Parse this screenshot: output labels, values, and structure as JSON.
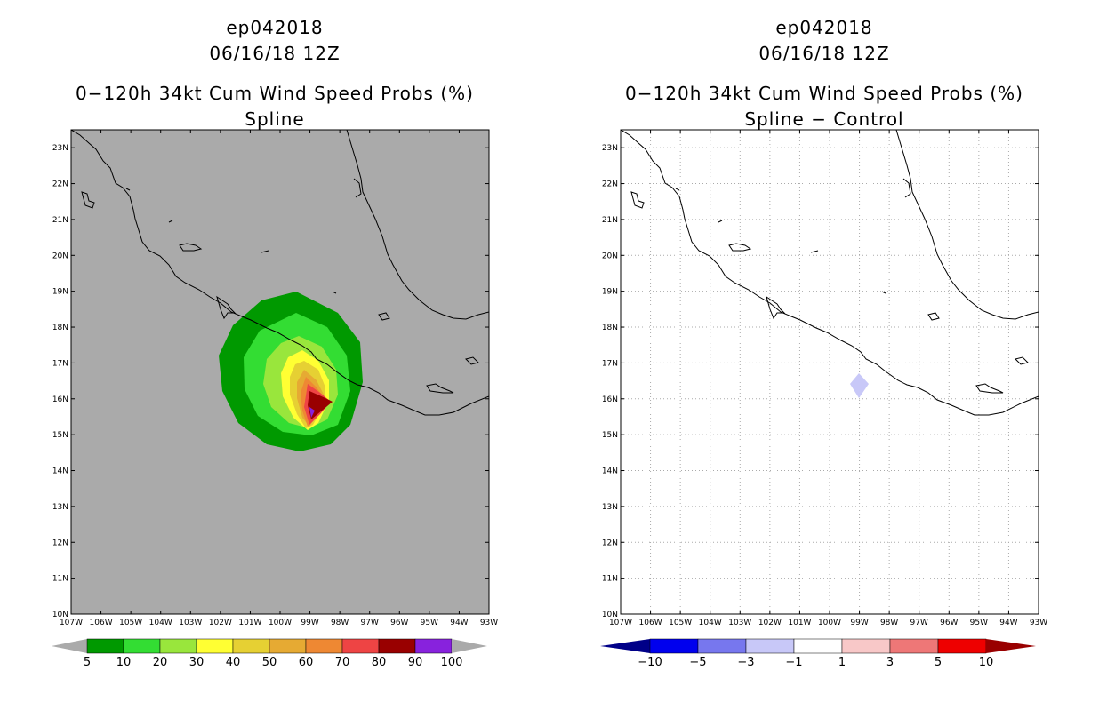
{
  "left": {
    "storm_id": "ep042018",
    "datetime": "06/16/18 12Z",
    "product": "0−120h 34kt Cum Wind Speed Probs (%)",
    "subtitle": "Spline",
    "colorbar_labels": [
      "5",
      "10",
      "20",
      "30",
      "40",
      "50",
      "60",
      "70",
      "80",
      "90",
      "100"
    ],
    "colorbar_colors": [
      "#009900",
      "#33dd33",
      "#99e63c",
      "#ffff33",
      "#e6d033",
      "#e6aa33",
      "#ee8833",
      "#ee4444",
      "#990000",
      "#8822dd"
    ],
    "colorbar_end_color": "#aaaaaa",
    "background_color": "#aaaaaa"
  },
  "right": {
    "storm_id": "ep042018",
    "datetime": "06/16/18 12Z",
    "product": "0−120h 34kt Cum Wind Speed Probs (%)",
    "subtitle": "Spline − Control",
    "colorbar_labels": [
      "−10",
      "−5",
      "−3",
      "−1",
      "1",
      "3",
      "5",
      "10"
    ],
    "colorbar_colors": [
      "#0000aa",
      "#0000ee",
      "#7777ee",
      "#c8c8f8",
      "#ffffff",
      "#f8c8c8",
      "#ee7777",
      "#ee0000",
      "#990000"
    ],
    "colorbar_start_color": "#000088"
  },
  "axes": {
    "lat_labels": [
      "10N",
      "11N",
      "12N",
      "13N",
      "14N",
      "15N",
      "16N",
      "17N",
      "18N",
      "19N",
      "20N",
      "21N",
      "22N",
      "23N"
    ],
    "lon_labels": [
      "107W",
      "106W",
      "105W",
      "104W",
      "103W",
      "102W",
      "101W",
      "100W",
      "99W",
      "98W",
      "97W",
      "96W",
      "95W",
      "94W",
      "93W"
    ]
  },
  "map_data": {
    "lon_range": [
      -107,
      -93
    ],
    "lat_range": [
      10,
      23.5
    ],
    "center_max": {
      "lon": -98.7,
      "lat": 15.9
    },
    "diff_feature": {
      "lon": -99.0,
      "lat": 16.4,
      "class": "-3 to -1"
    }
  }
}
